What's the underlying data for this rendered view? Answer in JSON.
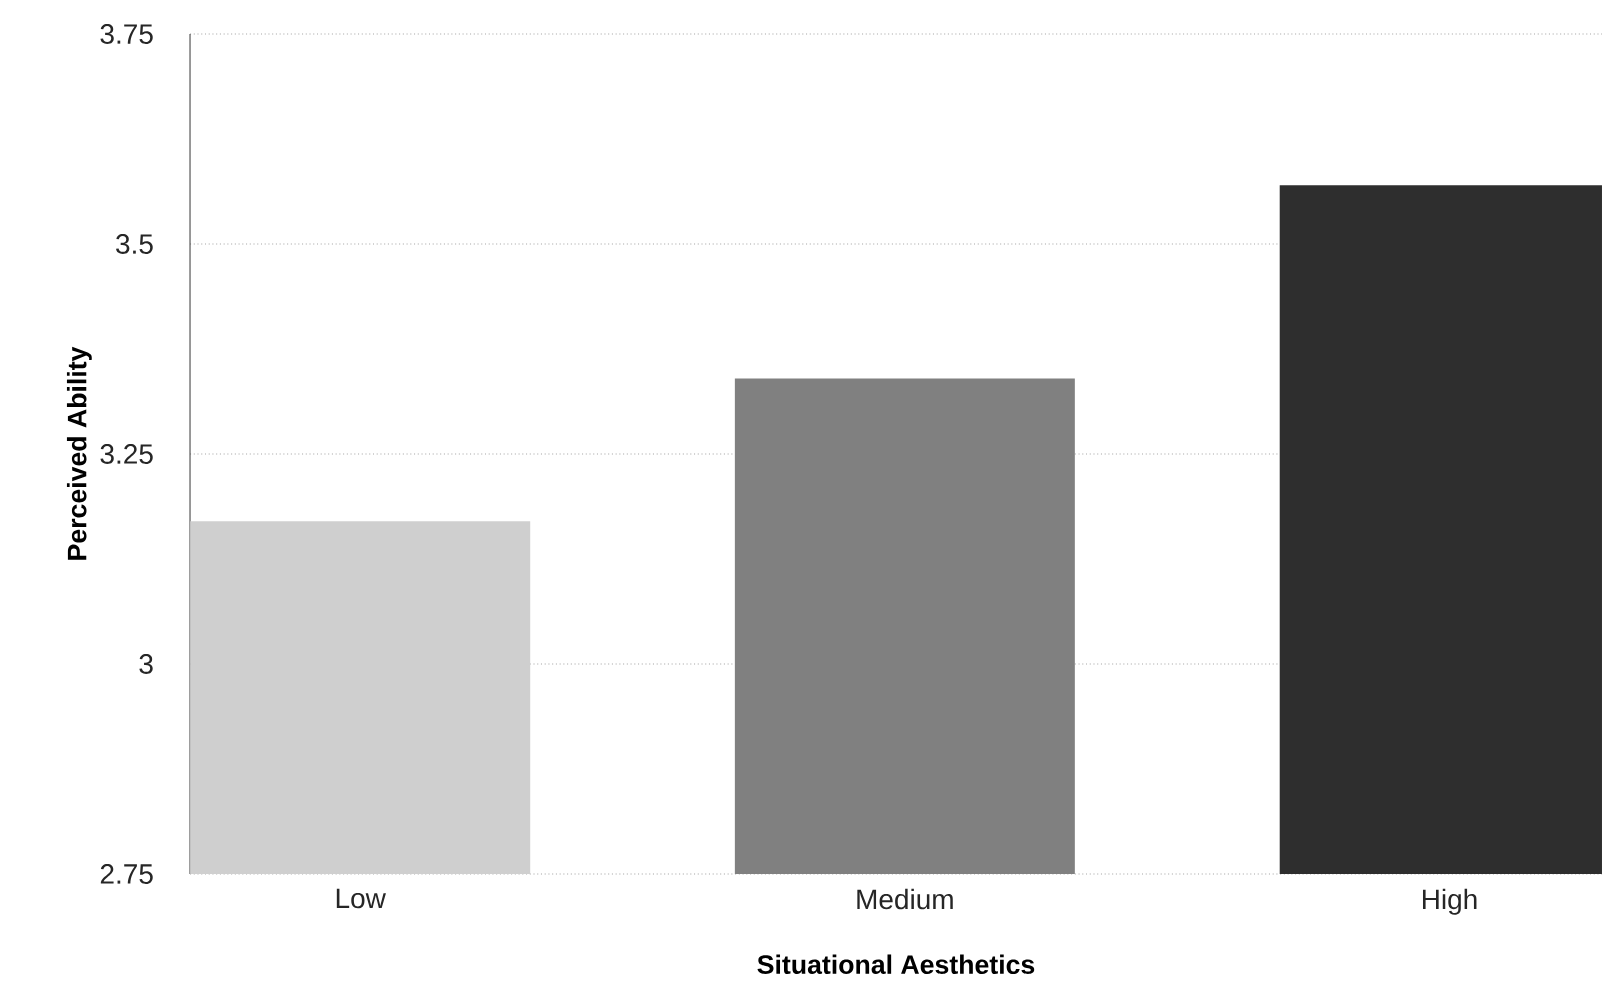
{
  "chart_data": {
    "type": "bar",
    "xlabel": "Situational Aesthetics",
    "ylabel": "Perceived Ability",
    "categories": [
      "Low",
      "Medium",
      "High"
    ],
    "values": [
      3.17,
      3.34,
      3.57
    ],
    "colors": [
      "#cfcfcf",
      "#808080",
      "#2e2e2e"
    ],
    "ylim": [
      2.75,
      3.75
    ],
    "yticks": [
      2.75,
      3,
      3.25,
      3.5,
      3.75
    ],
    "grid": "y"
  }
}
